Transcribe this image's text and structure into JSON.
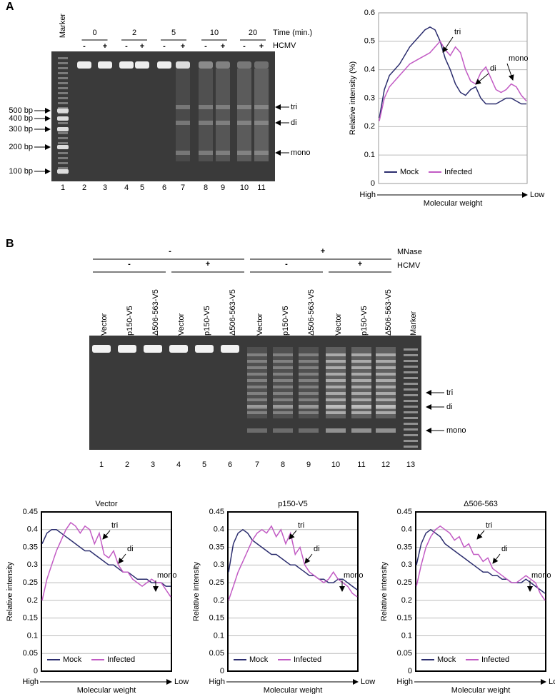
{
  "panel_a": {
    "label": "A",
    "marker": "Marker",
    "time_label": "Time (min.)",
    "times": [
      "0",
      "2",
      "5",
      "10",
      "20"
    ],
    "hcmv_label": "HCMV",
    "hcmv_signs": [
      "-",
      "+",
      "-",
      "+",
      "-",
      "+",
      "-",
      "+",
      "-",
      "+"
    ],
    "ladder": [
      "500 bp",
      "400 bp",
      "300 bp",
      "200 bp",
      "100 bp"
    ],
    "lanes": [
      "1",
      "2",
      "3",
      "4",
      "5",
      "6",
      "7",
      "8",
      "9",
      "10",
      "11"
    ],
    "bands": [
      "tri",
      "di",
      "mono"
    ]
  },
  "panel_b": {
    "label": "B",
    "mnase_label": "MNase",
    "mnase_signs": [
      "-",
      "+"
    ],
    "hcmv_label": "HCMV",
    "hcmv_signs": [
      "-",
      "+",
      "-",
      "+"
    ],
    "lane_labels": [
      "Vector",
      "p150-V5",
      "Δ506-563-V5",
      "Vector",
      "p150-V5",
      "Δ506-563-V5",
      "Vector",
      "p150-V5",
      "Δ506-563-V5",
      "Vector",
      "p150-V5",
      "Δ506-563-V5",
      "Marker"
    ],
    "lanes": [
      "1",
      "2",
      "3",
      "4",
      "5",
      "6",
      "7",
      "8",
      "9",
      "10",
      "11",
      "12",
      "13"
    ],
    "bands": [
      "tri",
      "di",
      "mono"
    ]
  },
  "chart_data": [
    {
      "type": "line",
      "ylabel": "Relative intensity (%)",
      "xlabel": "Molecular weight",
      "x_start": "High",
      "x_end": "Low",
      "ylim": [
        0,
        0.6
      ],
      "yticks": [
        0,
        0.1,
        0.2,
        0.3,
        0.4,
        0.5,
        0.6
      ],
      "grid": true,
      "legend": "lower left",
      "annotations": [
        "tri",
        "di",
        "mono"
      ],
      "series": [
        {
          "name": "Mock",
          "color": "#2b2d6e",
          "values": [
            0.23,
            0.33,
            0.38,
            0.4,
            0.42,
            0.45,
            0.48,
            0.5,
            0.52,
            0.54,
            0.55,
            0.54,
            0.5,
            0.44,
            0.4,
            0.35,
            0.32,
            0.31,
            0.33,
            0.34,
            0.3,
            0.28,
            0.28,
            0.28,
            0.29,
            0.3,
            0.3,
            0.29,
            0.28,
            0.28
          ]
        },
        {
          "name": "Infected",
          "color": "#c25bc4",
          "values": [
            0.22,
            0.3,
            0.34,
            0.36,
            0.38,
            0.4,
            0.42,
            0.43,
            0.44,
            0.45,
            0.46,
            0.48,
            0.5,
            0.47,
            0.45,
            0.48,
            0.46,
            0.4,
            0.36,
            0.35,
            0.39,
            0.41,
            0.37,
            0.33,
            0.32,
            0.33,
            0.35,
            0.34,
            0.31,
            0.29
          ]
        }
      ]
    },
    {
      "type": "line",
      "title": "Vector",
      "ylabel": "Relative intensity",
      "xlabel": "Molecular weight",
      "x_start": "High",
      "x_end": "Low",
      "ylim": [
        0,
        0.45
      ],
      "yticks": [
        0,
        0.05,
        0.1,
        0.15,
        0.2,
        0.25,
        0.3,
        0.35,
        0.4,
        0.45
      ],
      "grid": true,
      "legend": "lower left",
      "annotations": [
        "tri",
        "di",
        "mono"
      ],
      "series": [
        {
          "name": "Mock",
          "color": "#2b2d6e",
          "values": [
            0.36,
            0.39,
            0.4,
            0.4,
            0.39,
            0.38,
            0.37,
            0.36,
            0.35,
            0.34,
            0.34,
            0.33,
            0.32,
            0.31,
            0.3,
            0.3,
            0.29,
            0.28,
            0.28,
            0.27,
            0.26,
            0.26,
            0.26,
            0.25,
            0.25,
            0.25,
            0.24,
            0.24
          ]
        },
        {
          "name": "Infected",
          "color": "#c25bc4",
          "values": [
            0.2,
            0.26,
            0.3,
            0.34,
            0.37,
            0.4,
            0.42,
            0.41,
            0.39,
            0.41,
            0.4,
            0.36,
            0.39,
            0.33,
            0.32,
            0.34,
            0.3,
            0.28,
            0.28,
            0.26,
            0.25,
            0.24,
            0.25,
            0.26,
            0.25,
            0.25,
            0.23,
            0.21
          ]
        }
      ]
    },
    {
      "type": "line",
      "title": "p150-V5",
      "ylabel": "Relative intensity",
      "xlabel": "Molecular weight",
      "x_start": "High",
      "x_end": "Low",
      "ylim": [
        0,
        0.45
      ],
      "yticks": [
        0,
        0.05,
        0.1,
        0.15,
        0.2,
        0.25,
        0.3,
        0.35,
        0.4,
        0.45
      ],
      "grid": true,
      "legend": "lower left",
      "annotations": [
        "tri",
        "di",
        "mono"
      ],
      "series": [
        {
          "name": "Mock",
          "color": "#2b2d6e",
          "values": [
            0.28,
            0.36,
            0.39,
            0.4,
            0.39,
            0.37,
            0.36,
            0.35,
            0.34,
            0.33,
            0.33,
            0.32,
            0.31,
            0.3,
            0.3,
            0.29,
            0.28,
            0.27,
            0.27,
            0.26,
            0.26,
            0.25,
            0.25,
            0.26,
            0.26,
            0.25,
            0.24,
            0.23
          ]
        },
        {
          "name": "Infected",
          "color": "#c25bc4",
          "values": [
            0.2,
            0.24,
            0.28,
            0.31,
            0.34,
            0.37,
            0.39,
            0.4,
            0.39,
            0.41,
            0.38,
            0.4,
            0.36,
            0.39,
            0.33,
            0.35,
            0.3,
            0.28,
            0.27,
            0.26,
            0.25,
            0.26,
            0.28,
            0.26,
            0.25,
            0.24,
            0.22,
            0.21
          ]
        }
      ]
    },
    {
      "type": "line",
      "title": "Δ506-563",
      "ylabel": "Relative intensity",
      "xlabel": "Molecular weight",
      "x_start": "High",
      "x_end": "Low",
      "ylim": [
        0,
        0.45
      ],
      "yticks": [
        0,
        0.05,
        0.1,
        0.15,
        0.2,
        0.25,
        0.3,
        0.35,
        0.4,
        0.45
      ],
      "grid": true,
      "legend": "lower left",
      "annotations": [
        "tri",
        "di",
        "mono"
      ],
      "series": [
        {
          "name": "Mock",
          "color": "#2b2d6e",
          "values": [
            0.3,
            0.36,
            0.39,
            0.4,
            0.39,
            0.38,
            0.36,
            0.35,
            0.34,
            0.33,
            0.32,
            0.31,
            0.3,
            0.29,
            0.28,
            0.28,
            0.27,
            0.27,
            0.26,
            0.26,
            0.25,
            0.25,
            0.25,
            0.26,
            0.25,
            0.24,
            0.23,
            0.22
          ]
        },
        {
          "name": "Infected",
          "color": "#c25bc4",
          "values": [
            0.24,
            0.3,
            0.35,
            0.38,
            0.4,
            0.41,
            0.4,
            0.39,
            0.37,
            0.38,
            0.35,
            0.36,
            0.33,
            0.33,
            0.31,
            0.32,
            0.29,
            0.28,
            0.27,
            0.26,
            0.25,
            0.25,
            0.26,
            0.27,
            0.26,
            0.25,
            0.22,
            0.2
          ]
        }
      ]
    }
  ]
}
